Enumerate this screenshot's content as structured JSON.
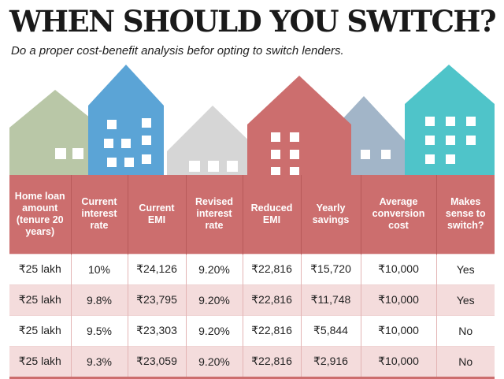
{
  "title": "WHEN SHOULD YOU SWITCH?",
  "subtitle": "Do a proper cost-benefit analysis befor opting to switch lenders.",
  "colors": {
    "header": "#cc6e6e",
    "row_stripe": "#f4dcdc",
    "house_sage": "#b9c7a7",
    "house_blue": "#5ba4d6",
    "house_grey": "#d6d6d6",
    "house_red": "#cc6e6e",
    "house_slate": "#a2b5c8",
    "house_teal": "#4fc4c9"
  },
  "table": {
    "headers": [
      "Home loan amount (tenure 20 years)",
      "Current interest rate",
      "Current EMI",
      "Revised interest rate",
      "Reduced EMI",
      "Yearly savings",
      "Average conversion cost",
      "Makes sense to switch?"
    ],
    "rows": [
      [
        "₹25 lakh",
        "10%",
        "₹24,126",
        "9.20%",
        "₹22,816",
        "₹15,720",
        "₹10,000",
        "Yes"
      ],
      [
        "₹25 lakh",
        "9.8%",
        "₹23,795",
        "9.20%",
        "₹22,816",
        "₹11,748",
        "₹10,000",
        "Yes"
      ],
      [
        "₹25 lakh",
        "9.5%",
        "₹23,303",
        "9.20%",
        "₹22,816",
        "₹5,844",
        "₹10,000",
        "No"
      ],
      [
        "₹25 lakh",
        "9.3%",
        "₹23,059",
        "9.20%",
        "₹22,816",
        "₹2,916",
        "₹10,000",
        "No"
      ]
    ]
  }
}
